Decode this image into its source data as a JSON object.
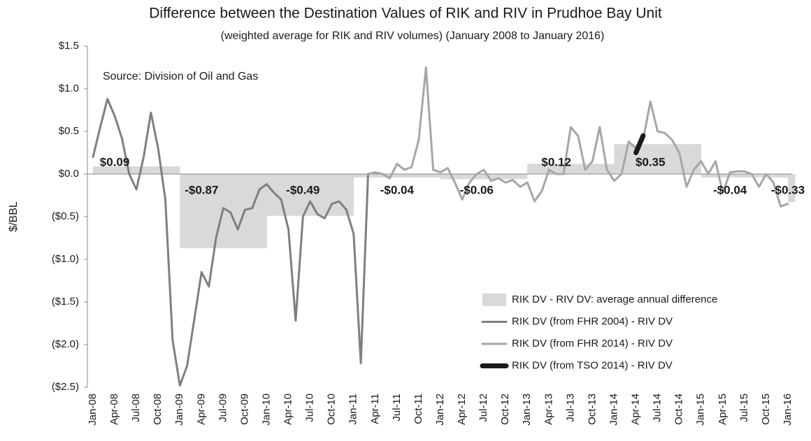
{
  "chart_data": {
    "type": "line",
    "title": "Difference between the Destination Values of RIK and RIV in Prudhoe Bay Unit",
    "subtitle": "(weighted average for RIK and RIV volumes) (January 2008 to January 2016)",
    "annotation": "Source: Division of Oil and Gas",
    "y_label": "$/BBL",
    "categories": [
      "Jan-08",
      null,
      null,
      "Apr-08",
      null,
      null,
      "Jul-08",
      null,
      null,
      "Oct-08",
      null,
      null,
      "Jan-09",
      null,
      null,
      "Apr-09",
      null,
      null,
      "Jul-09",
      null,
      null,
      "Oct-09",
      null,
      null,
      "Jan-10",
      null,
      null,
      "Apr-10",
      null,
      null,
      "Jul-10",
      null,
      null,
      "Oct-10",
      null,
      null,
      "Jan-11",
      null,
      null,
      "Apr-11",
      null,
      null,
      "Jul-11",
      null,
      null,
      "Oct-11",
      null,
      null,
      "Jan-12",
      null,
      null,
      "Apr-12",
      null,
      null,
      "Jul-12",
      null,
      null,
      "Oct-12",
      null,
      null,
      "Jan-13",
      null,
      null,
      "Apr-13",
      null,
      null,
      "Jul-13",
      null,
      null,
      "Oct-13",
      null,
      null,
      "Jan-14",
      null,
      null,
      "Apr-14",
      null,
      null,
      "Jul-14",
      null,
      null,
      "Oct-14",
      null,
      null,
      "Jan-15",
      null,
      null,
      "Apr-15",
      null,
      null,
      "Jul-15",
      null,
      null,
      "Oct-15",
      null,
      null,
      "Jan-16"
    ],
    "ylim": [
      -2.5,
      1.5
    ],
    "yticks": [
      {
        "value": 1.5,
        "label": "$1.5"
      },
      {
        "value": 1.0,
        "label": "$1.0"
      },
      {
        "value": 0.5,
        "label": "$0.5"
      },
      {
        "value": 0,
        "label": "$0.0"
      },
      {
        "value": -0.5,
        "label": "($0.5)"
      },
      {
        "value": -1.0,
        "label": "($1.0)"
      },
      {
        "value": -1.5,
        "label": "($1.5)"
      },
      {
        "value": -2.0,
        "label": "($2.0)"
      },
      {
        "value": -2.5,
        "label": "($2.5)"
      }
    ],
    "legend": "lower right",
    "series": [
      {
        "name": "RIK DV - RIV DV: average annual difference",
        "kind": "area",
        "color": "#d9d9d9",
        "values": [
          0.09,
          0.09,
          0.09,
          0.09,
          0.09,
          0.09,
          0.09,
          0.09,
          0.09,
          0.09,
          0.09,
          0.09,
          -0.87,
          -0.87,
          -0.87,
          -0.87,
          -0.87,
          -0.87,
          -0.87,
          -0.87,
          -0.87,
          -0.87,
          -0.87,
          -0.87,
          -0.49,
          -0.49,
          -0.49,
          -0.49,
          -0.49,
          -0.49,
          -0.49,
          -0.49,
          -0.49,
          -0.49,
          -0.49,
          -0.49,
          -0.04,
          -0.04,
          -0.04,
          -0.04,
          -0.04,
          -0.04,
          -0.04,
          -0.04,
          -0.04,
          -0.04,
          -0.04,
          -0.04,
          -0.06,
          -0.06,
          -0.06,
          -0.06,
          -0.06,
          -0.06,
          -0.06,
          -0.06,
          -0.06,
          -0.06,
          -0.06,
          -0.06,
          0.12,
          0.12,
          0.12,
          0.12,
          0.12,
          0.12,
          0.12,
          0.12,
          0.12,
          0.12,
          0.12,
          0.12,
          0.35,
          0.35,
          0.35,
          0.35,
          0.35,
          0.35,
          0.35,
          0.35,
          0.35,
          0.35,
          0.35,
          0.35,
          -0.04,
          -0.04,
          -0.04,
          -0.04,
          -0.04,
          -0.04,
          -0.04,
          -0.04,
          -0.04,
          -0.04,
          -0.04,
          -0.04,
          -0.33
        ],
        "value_labels": [
          null,
          null,
          null,
          "$0.09",
          null,
          null,
          null,
          null,
          null,
          null,
          null,
          null,
          null,
          null,
          null,
          "-$0.87",
          null,
          null,
          null,
          null,
          null,
          null,
          null,
          null,
          null,
          null,
          null,
          null,
          null,
          "-$0.49",
          null,
          null,
          null,
          null,
          null,
          null,
          null,
          null,
          null,
          null,
          null,
          null,
          "-$0.04",
          null,
          null,
          null,
          null,
          null,
          null,
          null,
          null,
          null,
          null,
          "-$0.06",
          null,
          null,
          null,
          null,
          null,
          null,
          null,
          null,
          null,
          null,
          "$0.12",
          null,
          null,
          null,
          null,
          null,
          null,
          null,
          null,
          null,
          null,
          null,
          null,
          "$0.35",
          null,
          null,
          null,
          null,
          null,
          null,
          null,
          null,
          null,
          null,
          "-$0.04",
          null,
          null,
          null,
          null,
          null,
          null,
          null,
          "-$0.33"
        ]
      },
      {
        "name": "RIK DV (from FHR 2004) - RIV DV",
        "kind": "line",
        "color": "#7f7f7f",
        "width": 3,
        "values": [
          0.2,
          0.55,
          0.88,
          0.68,
          0.42,
          0.0,
          -0.18,
          0.2,
          0.72,
          0.3,
          -0.3,
          -1.95,
          -2.48,
          -2.25,
          -1.7,
          -1.15,
          -1.32,
          -0.75,
          -0.4,
          -0.45,
          -0.65,
          -0.42,
          -0.4,
          -0.18,
          -0.12,
          -0.22,
          -0.3,
          -0.65,
          -1.72,
          -0.5,
          -0.32,
          -0.47,
          -0.52,
          -0.35,
          -0.32,
          -0.42,
          -0.7,
          -2.22,
          0.0,
          null,
          null,
          null,
          null,
          null,
          null,
          null,
          null,
          null,
          null,
          null,
          null,
          null,
          null,
          null,
          null,
          null,
          null,
          null,
          null,
          null,
          null,
          null,
          null,
          null,
          null,
          null,
          null,
          null,
          null,
          null,
          null,
          null,
          null,
          null,
          null,
          null,
          null,
          null,
          null,
          null,
          null,
          null,
          null,
          null,
          null,
          null,
          null,
          null,
          null,
          null,
          null,
          null,
          null,
          null,
          null,
          null,
          null
        ]
      },
      {
        "name": "RIK DV (from FHR 2014) - RIV DV",
        "kind": "line",
        "color": "#a6a6a6",
        "width": 3,
        "values": [
          null,
          null,
          null,
          null,
          null,
          null,
          null,
          null,
          null,
          null,
          null,
          null,
          null,
          null,
          null,
          null,
          null,
          null,
          null,
          null,
          null,
          null,
          null,
          null,
          null,
          null,
          null,
          null,
          null,
          null,
          null,
          null,
          null,
          null,
          null,
          null,
          null,
          null,
          0.0,
          0.02,
          0.0,
          -0.05,
          0.12,
          0.05,
          0.08,
          0.4,
          1.25,
          0.05,
          0.02,
          0.07,
          -0.1,
          -0.3,
          -0.1,
          0.0,
          0.05,
          -0.08,
          -0.05,
          -0.1,
          -0.07,
          -0.15,
          -0.1,
          -0.32,
          -0.2,
          0.05,
          0.0,
          0.0,
          0.55,
          0.45,
          0.05,
          0.15,
          0.55,
          0.05,
          -0.08,
          0.0,
          0.38,
          0.3,
          0.4,
          0.85,
          0.5,
          0.48,
          0.4,
          0.25,
          -0.15,
          0.05,
          0.15,
          0.0,
          0.15,
          -0.22,
          0.02,
          0.03,
          0.03,
          0.0,
          -0.15,
          0.0,
          -0.1,
          -0.38,
          -0.35
        ]
      },
      {
        "name": "RIK DV (from TSO 2014) - RIV DV",
        "kind": "line",
        "color": "#1a1a1a",
        "width": 7,
        "values": [
          null,
          null,
          null,
          null,
          null,
          null,
          null,
          null,
          null,
          null,
          null,
          null,
          null,
          null,
          null,
          null,
          null,
          null,
          null,
          null,
          null,
          null,
          null,
          null,
          null,
          null,
          null,
          null,
          null,
          null,
          null,
          null,
          null,
          null,
          null,
          null,
          null,
          null,
          null,
          null,
          null,
          null,
          null,
          null,
          null,
          null,
          null,
          null,
          null,
          null,
          null,
          null,
          null,
          null,
          null,
          null,
          null,
          null,
          null,
          null,
          null,
          null,
          null,
          null,
          null,
          null,
          null,
          null,
          null,
          null,
          null,
          null,
          null,
          null,
          null,
          0.25,
          0.45,
          null,
          null,
          null,
          null,
          null,
          null,
          null,
          null,
          null,
          null,
          null,
          null,
          null,
          null,
          null,
          null,
          null,
          null,
          null,
          null
        ]
      }
    ]
  }
}
